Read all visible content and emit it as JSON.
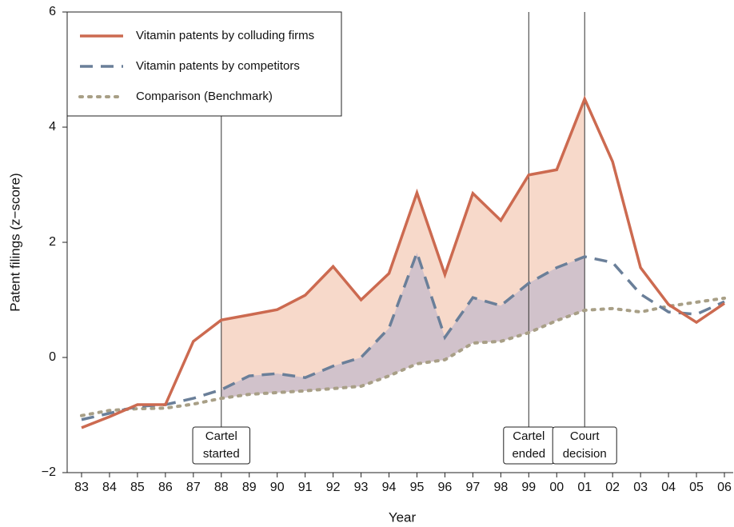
{
  "chart_data": {
    "type": "line",
    "xlabel": "Year",
    "ylabel": "Patent filings (z−score)",
    "categories": [
      "83",
      "84",
      "85",
      "86",
      "87",
      "88",
      "89",
      "90",
      "91",
      "92",
      "93",
      "94",
      "95",
      "96",
      "97",
      "98",
      "99",
      "00",
      "01",
      "02",
      "03",
      "04",
      "05",
      "06"
    ],
    "series": [
      {
        "name": "Vitamin patents by colluding firms",
        "color": "#cc6a50",
        "style": "solid",
        "values": [
          -1.22,
          -1.03,
          -0.82,
          -0.82,
          0.28,
          0.65,
          0.74,
          0.83,
          1.08,
          1.58,
          1.0,
          1.46,
          2.86,
          1.44,
          2.85,
          2.38,
          3.17,
          3.26,
          4.49,
          3.4,
          1.56,
          0.92,
          0.61,
          0.94
        ]
      },
      {
        "name": "Vitamin patents by competitors",
        "color": "#6a7f99",
        "style": "dashed",
        "values": [
          -1.08,
          -0.97,
          -0.85,
          -0.82,
          -0.71,
          -0.56,
          -0.32,
          -0.28,
          -0.35,
          -0.15,
          0.0,
          0.51,
          1.82,
          0.35,
          1.04,
          0.9,
          1.29,
          1.56,
          1.75,
          1.65,
          1.1,
          0.79,
          0.75,
          0.97
        ]
      },
      {
        "name": "Comparison (Benchmark)",
        "color": "#a89f86",
        "style": "dotted",
        "values": [
          -1.01,
          -0.92,
          -0.89,
          -0.88,
          -0.81,
          -0.71,
          -0.64,
          -0.61,
          -0.58,
          -0.54,
          -0.5,
          -0.32,
          -0.11,
          -0.04,
          0.25,
          0.28,
          0.43,
          0.64,
          0.82,
          0.85,
          0.79,
          0.89,
          0.96,
          1.03
        ]
      }
    ],
    "ylim": [
      -2,
      6
    ],
    "yticks": [
      {
        "value": -2,
        "label": "−2"
      },
      0,
      2,
      4,
      6
    ],
    "legend": "upper left",
    "annotations": [
      {
        "x": "88",
        "lines": [
          "Cartel",
          "started"
        ]
      },
      {
        "x": "99",
        "lines": [
          "Cartel",
          "ended"
        ]
      },
      {
        "x": "01",
        "lines": [
          "Court",
          "decision"
        ]
      }
    ]
  }
}
